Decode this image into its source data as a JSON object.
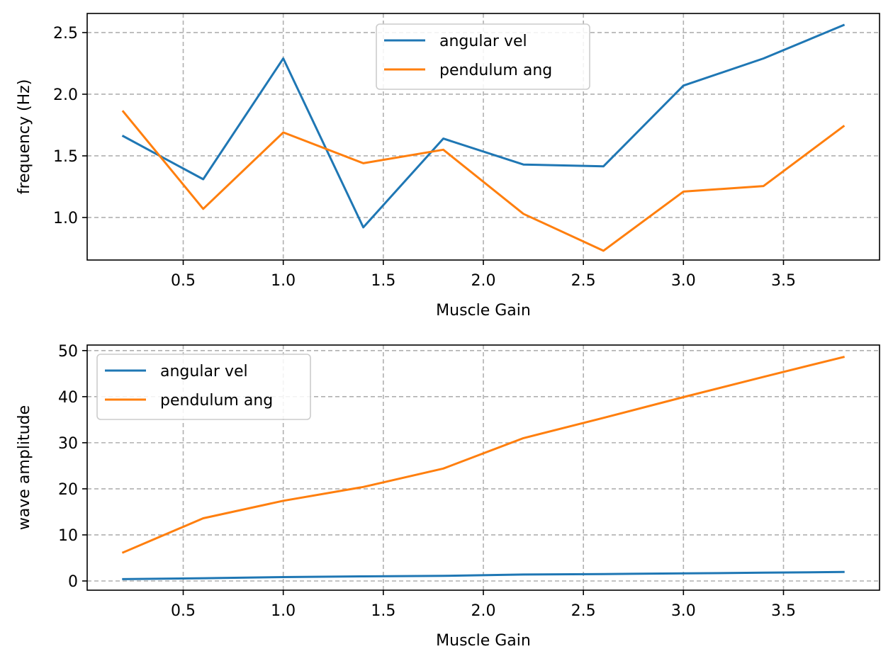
{
  "colors": {
    "angular_vel": "#1f77b4",
    "pendulum_ang": "#ff7f0e",
    "grid": "#b0b0b0"
  },
  "chart_data": [
    {
      "type": "line",
      "xlabel": "Muscle Gain",
      "ylabel": "frequency (Hz)",
      "xlim": [
        0.02,
        3.98
      ],
      "ylim": [
        0.655,
        2.655
      ],
      "xticks": [
        0.5,
        1.0,
        1.5,
        2.0,
        2.5,
        3.0,
        3.5
      ],
      "xtick_labels": [
        "0.5",
        "1.0",
        "1.5",
        "2.0",
        "2.5",
        "3.0",
        "3.5"
      ],
      "yticks": [
        1.0,
        1.5,
        2.0,
        2.5
      ],
      "ytick_labels": [
        "1.0",
        "1.5",
        "2.0",
        "2.5"
      ],
      "grid": true,
      "legend_position": "upper center",
      "x": [
        0.2,
        0.6,
        1.0,
        1.4,
        1.8,
        2.2,
        2.6,
        3.0,
        3.4,
        3.8
      ],
      "series": [
        {
          "name": "angular vel",
          "color": "#1f77b4",
          "values": [
            1.66,
            1.31,
            2.29,
            0.92,
            1.64,
            1.43,
            1.415,
            2.07,
            2.29,
            2.56
          ]
        },
        {
          "name": "pendulum ang",
          "color": "#ff7f0e",
          "values": [
            1.86,
            1.07,
            1.69,
            1.44,
            1.55,
            1.03,
            0.73,
            1.21,
            1.255,
            1.74
          ]
        }
      ]
    },
    {
      "type": "line",
      "xlabel": "Muscle Gain",
      "ylabel": "wave amplitude",
      "xlim": [
        0.02,
        3.98
      ],
      "ylim": [
        -2.0,
        51.2
      ],
      "xticks": [
        0.5,
        1.0,
        1.5,
        2.0,
        2.5,
        3.0,
        3.5
      ],
      "xtick_labels": [
        "0.5",
        "1.0",
        "1.5",
        "2.0",
        "2.5",
        "3.0",
        "3.5"
      ],
      "yticks": [
        0,
        10,
        20,
        30,
        40,
        50
      ],
      "ytick_labels": [
        "0",
        "10",
        "20",
        "30",
        "40",
        "50"
      ],
      "grid": true,
      "legend_position": "upper left",
      "x": [
        0.2,
        0.6,
        1.0,
        1.4,
        1.8,
        2.2,
        2.6,
        3.0,
        3.4,
        3.8
      ],
      "series": [
        {
          "name": "angular vel",
          "color": "#1f77b4",
          "values": [
            0.4,
            0.6,
            0.85,
            1.0,
            1.1,
            1.4,
            1.5,
            1.65,
            1.8,
            1.95
          ]
        },
        {
          "name": "pendulum ang",
          "color": "#ff7f0e",
          "values": [
            6.2,
            13.6,
            17.4,
            20.4,
            24.4,
            31.0,
            35.4,
            39.9,
            44.3,
            48.6
          ]
        }
      ]
    }
  ]
}
